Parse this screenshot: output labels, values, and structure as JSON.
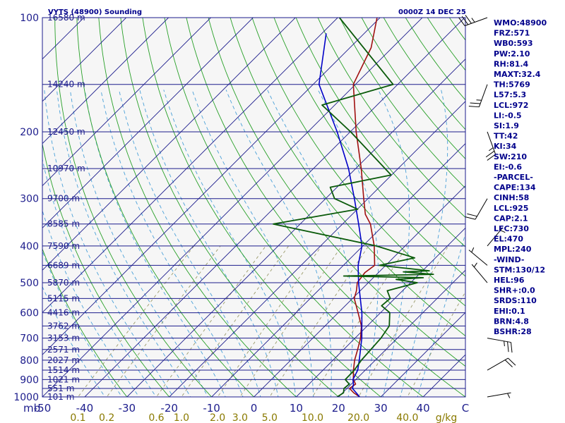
{
  "chart_data": {
    "type": "skew-t log-p sounding",
    "title_left": "VYTS (48900) Sounding",
    "title_right": "0000Z 14 DEC 25",
    "pressure_axis": {
      "unit_label": "mb",
      "range": [
        1000,
        100
      ],
      "scale": "log",
      "ticks": [
        100,
        200,
        300,
        400,
        500,
        600,
        700,
        800,
        900,
        1000
      ]
    },
    "temperature_axis": {
      "range": [
        -50,
        50
      ],
      "ticks": [
        -50,
        -40,
        -30,
        -20,
        -10,
        0,
        10,
        20,
        30,
        40
      ],
      "end_label": "C"
    },
    "mixing_ratio_axis": {
      "unit_label": "g/kg",
      "ticks": [
        "0.1",
        "0.2",
        "0.6",
        "1.0",
        "2.0",
        "3.0",
        "5.0",
        "10.0",
        "20.0",
        "40.0"
      ]
    },
    "height_levels": [
      {
        "p": 100,
        "label": "16580 m"
      },
      {
        "p": 150,
        "label": "14240 m"
      },
      {
        "p": 200,
        "label": "12450 m"
      },
      {
        "p": 250,
        "label": "10970 m"
      },
      {
        "p": 300,
        "label": "9700 m"
      },
      {
        "p": 350,
        "label": "8585 m"
      },
      {
        "p": 400,
        "label": "7590 m"
      },
      {
        "p": 450,
        "label": "6689 m"
      },
      {
        "p": 500,
        "label": "5870 m"
      },
      {
        "p": 550,
        "label": "5115 m"
      },
      {
        "p": 600,
        "label": "4416 m"
      },
      {
        "p": 650,
        "label": "3762 m"
      },
      {
        "p": 700,
        "label": "3153 m"
      },
      {
        "p": 750,
        "label": "2571 m"
      },
      {
        "p": 800,
        "label": "2027 m"
      },
      {
        "p": 850,
        "label": "1514 m"
      },
      {
        "p": 900,
        "label": "1021 m"
      },
      {
        "p": 950,
        "label": "551 m"
      },
      {
        "p": 1000,
        "label": "101 m"
      }
    ],
    "series": [
      {
        "role": "temperature",
        "color": "#a01010",
        "points": [
          [
            1000,
            25.0
          ],
          [
            975,
            22.6
          ],
          [
            950,
            20.6
          ],
          [
            925,
            21.0
          ],
          [
            900,
            19.4
          ],
          [
            850,
            17.2
          ],
          [
            800,
            15.1
          ],
          [
            750,
            13.3
          ],
          [
            700,
            11.3
          ],
          [
            650,
            8.6
          ],
          [
            600,
            4.7
          ],
          [
            550,
            0.4
          ],
          [
            525,
            -0.9
          ],
          [
            500,
            -2.6
          ],
          [
            470,
            -3.2
          ],
          [
            450,
            -2.6
          ],
          [
            400,
            -7.3
          ],
          [
            350,
            -13.4
          ],
          [
            330,
            -16.9
          ],
          [
            300,
            -21.0
          ],
          [
            250,
            -28.7
          ],
          [
            200,
            -38.6
          ],
          [
            150,
            -50.5
          ],
          [
            120,
            -55.0
          ],
          [
            100,
            -60.7
          ]
        ]
      },
      {
        "role": "parcel",
        "color": "#0000c8",
        "points": [
          [
            1000,
            25.0
          ],
          [
            950,
            21.3
          ],
          [
            925,
            20.5
          ],
          [
            900,
            19.3
          ],
          [
            850,
            18.2
          ],
          [
            800,
            16.2
          ],
          [
            700,
            11.6
          ],
          [
            600,
            5.6
          ],
          [
            500,
            -2.3
          ],
          [
            450,
            -6.5
          ],
          [
            400,
            -10.2
          ],
          [
            350,
            -16.2
          ],
          [
            300,
            -23.2
          ],
          [
            250,
            -31.7
          ],
          [
            200,
            -43.1
          ],
          [
            150,
            -58.6
          ],
          [
            110,
            -69.0
          ]
        ]
      },
      {
        "role": "dewpoint",
        "color": "#0a5a0a",
        "points": [
          [
            1000,
            19.7
          ],
          [
            975,
            20.2
          ],
          [
            950,
            19.3
          ],
          [
            925,
            19.5
          ],
          [
            900,
            17.5
          ],
          [
            850,
            17.4
          ],
          [
            800,
            16.7
          ],
          [
            700,
            16.1
          ],
          [
            650,
            15.2
          ],
          [
            600,
            12.2
          ],
          [
            575,
            8.6
          ],
          [
            550,
            8.9
          ],
          [
            525,
            6.4
          ],
          [
            500,
            11.6
          ],
          [
            490,
            5.8
          ],
          [
            485,
            11.8
          ],
          [
            480,
            -7.4
          ],
          [
            475,
            13.4
          ],
          [
            468,
            5.7
          ],
          [
            465,
            11.6
          ],
          [
            450,
            -1.5
          ],
          [
            430,
            5.1
          ],
          [
            400,
            -6.8
          ],
          [
            350,
            -36.4
          ],
          [
            320,
            -19.9
          ],
          [
            300,
            -27.9
          ],
          [
            280,
            -31.6
          ],
          [
            260,
            -20.1
          ],
          [
            200,
            -39.9
          ],
          [
            170,
            -53.0
          ],
          [
            150,
            -41.1
          ],
          [
            100,
            -69.6
          ]
        ]
      }
    ],
    "wind_barbs": [
      {
        "p": 100,
        "dir": 250,
        "speed_kt": 35
      },
      {
        "p": 150,
        "dir": 200,
        "speed_kt": 25
      },
      {
        "p": 200,
        "dir": 160,
        "speed_kt": 25
      },
      {
        "p": 300,
        "dir": 210,
        "speed_kt": 20
      },
      {
        "p": 400,
        "dir": 40,
        "speed_kt": 5
      },
      {
        "p": 450,
        "dir": 310,
        "speed_kt": 5
      },
      {
        "p": 500,
        "dir": 320,
        "speed_kt": 5
      },
      {
        "p": 700,
        "dir": 100,
        "speed_kt": 25
      },
      {
        "p": 850,
        "dir": 60,
        "speed_kt": 20
      },
      {
        "p": 1000,
        "dir": 80,
        "speed_kt": 5
      }
    ],
    "indices": [
      "WMO:48900",
      "FRZ:571",
      "WB0:593",
      "PW:2.10",
      "RH:81.4",
      "MAXT:32.4",
      "TH:5769",
      "L57:5.3",
      "LCL:972",
      "LI:-0.5",
      "SI:1.9",
      "TT:42",
      "KI:34",
      "SW:210",
      "EI:-0.6",
      "-PARCEL-",
      "CAPE:134",
      "CINH:58",
      "LCL:925",
      "CAP:2.1",
      "LFC:730",
      "EL:470",
      "MPL:240",
      "-WIND-",
      "STM:130/12",
      "HEL:96",
      "SHR+:0.0",
      "SRDS:110",
      "EHI:0.1",
      "BRN:4.8",
      "BSHR:28"
    ],
    "colors": {
      "isobar": "#1c1c8c",
      "isotherm": "#1c1c8c",
      "dry_adiabat": "#28a028",
      "moist_adiabat": "#4aa0d8",
      "mixing_ratio": "#9a9a6a",
      "axis_text": "#1c1c8c",
      "mixing_ratio_text": "#8a7a00"
    }
  }
}
